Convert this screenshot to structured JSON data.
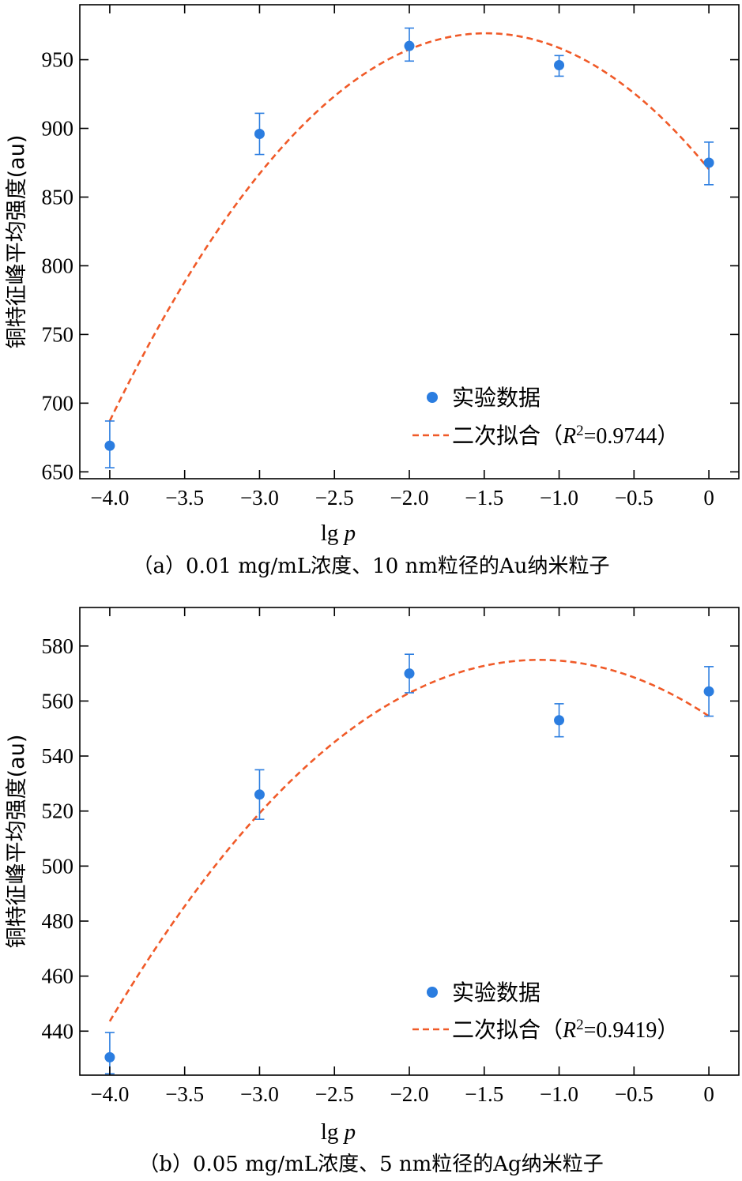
{
  "chart_data": [
    {
      "type": "scatter",
      "panel": "a",
      "caption": "（a）0.01 mg/mL浓度、10 nm粒径的Au纳米粒子",
      "xlabel_prefix": "lg ",
      "xlabel_var": "p",
      "ylabel": "铜特征峰平均强度(au)",
      "xlim": [
        -4.2,
        0.2
      ],
      "ylim": [
        645,
        990
      ],
      "xticks": [
        -4.0,
        -3.5,
        -3.0,
        -2.5,
        -2.0,
        -1.5,
        -1.0,
        -0.5,
        0
      ],
      "xtick_labels": [
        "−4.0",
        "−3.5",
        "−3.0",
        "−2.5",
        "−2.0",
        "−1.5",
        "−1.0",
        "−0.5",
        "0"
      ],
      "yticks": [
        650,
        700,
        750,
        800,
        850,
        900,
        950
      ],
      "ytick_labels": [
        "650",
        "700",
        "750",
        "800",
        "850",
        "900",
        "950"
      ],
      "series": [
        {
          "name": "实验数据",
          "kind": "points",
          "color": "#2b7de0",
          "x": [
            -4.0,
            -3.0,
            -2.0,
            -1.0,
            0
          ],
          "y": [
            669,
            896,
            960,
            946,
            875
          ],
          "err_low": [
            16,
            15,
            11,
            8,
            16
          ],
          "err_high": [
            18,
            15,
            13,
            7,
            15
          ]
        },
        {
          "name": "二次拟合",
          "kind": "fit",
          "color": "#f05a28",
          "coefficients": [
            -44.7,
            -133.0,
            870.3
          ],
          "x_range": [
            -4.0,
            0
          ],
          "legend_label": "二次拟合（",
          "legend_r": "R",
          "legend_sup": "2",
          "legend_tail": "=0.9744）"
        }
      ],
      "legend_placement": "lower-right",
      "grid": false
    },
    {
      "type": "scatter",
      "panel": "b",
      "caption": "（b）0.05 mg/mL浓度、5 nm粒径的Ag纳米粒子",
      "xlabel_prefix": "lg ",
      "xlabel_var": "p",
      "ylabel": "铜特征峰平均强度(au)",
      "xlim": [
        -4.2,
        0.2
      ],
      "ylim": [
        424,
        594
      ],
      "xticks": [
        -4.0,
        -3.5,
        -3.0,
        -2.5,
        -2.0,
        -1.5,
        -1.0,
        -0.5,
        0
      ],
      "xtick_labels": [
        "−4.0",
        "−3.5",
        "−3.0",
        "−2.5",
        "−2.0",
        "−1.5",
        "−1.0",
        "−0.5",
        "0"
      ],
      "yticks": [
        440,
        460,
        480,
        500,
        520,
        540,
        560,
        580
      ],
      "ytick_labels": [
        "440",
        "460",
        "480",
        "500",
        "520",
        "540",
        "560",
        "580"
      ],
      "series": [
        {
          "name": "实验数据",
          "kind": "points",
          "color": "#2b7de0",
          "x": [
            -4.0,
            -3.0,
            -2.0,
            -1.0,
            0
          ],
          "y": [
            430.5,
            526,
            570,
            553,
            563.5
          ],
          "err_low": [
            6,
            9,
            7,
            6,
            9
          ],
          "err_high": [
            9,
            9,
            7,
            6,
            9
          ]
        },
        {
          "name": "二次拟合",
          "kind": "fit",
          "color": "#f05a28",
          "coefficients": [
            -15.97,
            -36.15,
            554.5
          ],
          "x_range": [
            -4.0,
            0
          ],
          "legend_label": "二次拟合（",
          "legend_r": "R",
          "legend_sup": "2",
          "legend_tail": "=0.9419）"
        }
      ],
      "legend_placement": "lower-right",
      "grid": false
    }
  ]
}
